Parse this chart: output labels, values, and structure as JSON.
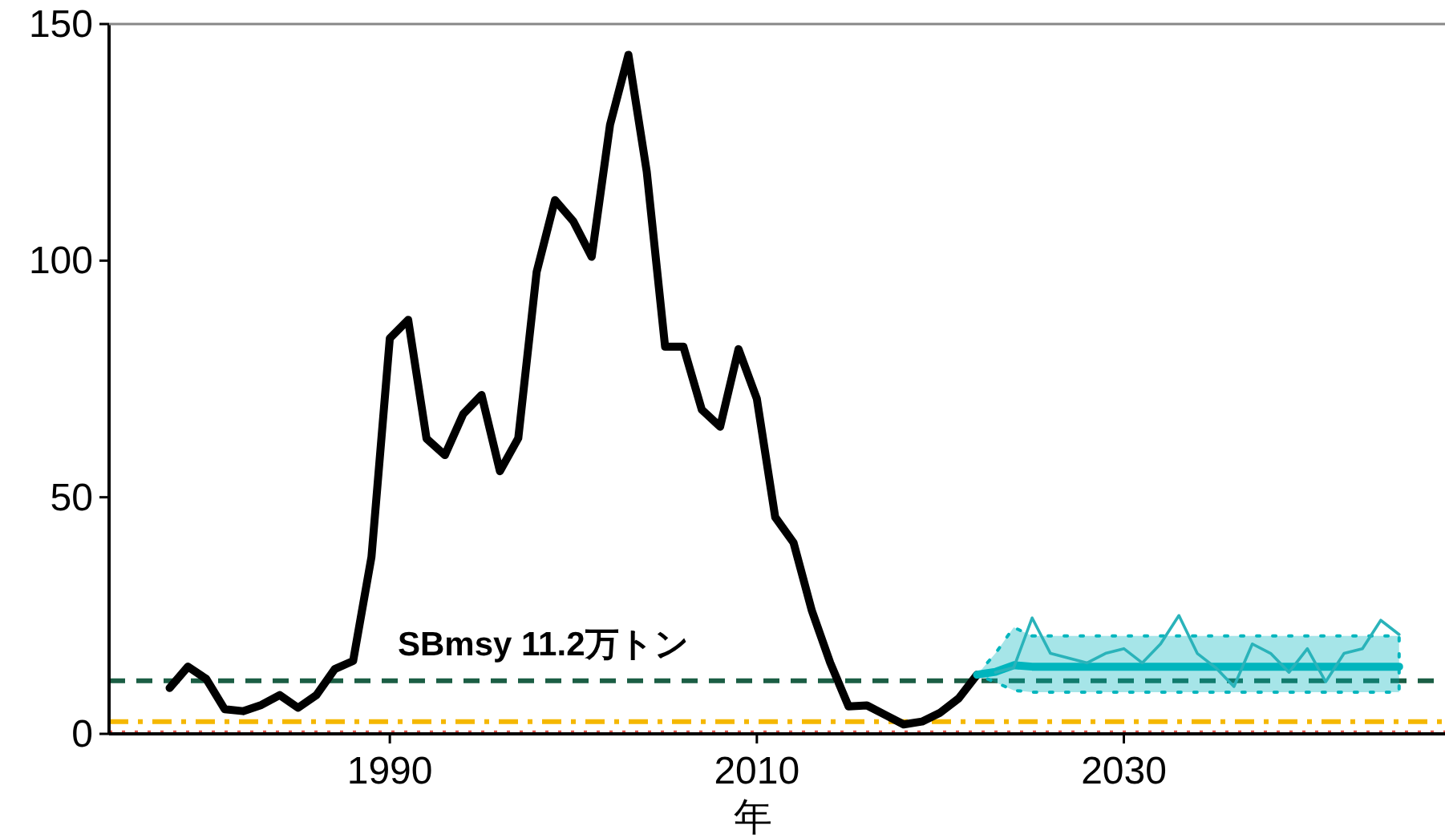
{
  "chart_data": {
    "type": "line",
    "xlabel": "年",
    "xlim": [
      1974.7,
      2047.5
    ],
    "ylim": [
      0,
      150
    ],
    "xticks": [
      1990,
      2010,
      2030
    ],
    "yticks": [
      0,
      50,
      100,
      150
    ],
    "grid": false,
    "marker": "none",
    "series": [
      {
        "color": "#000000",
        "x": [
          1978,
          1979,
          1980,
          1981,
          1982,
          1983,
          1984,
          1985,
          1986,
          1987,
          1988,
          1989,
          1990,
          1991,
          1992,
          1993,
          1994,
          1995,
          1996,
          1997,
          1998,
          1999,
          2000,
          2001,
          2002,
          2003,
          2004,
          2005,
          2006,
          2007,
          2008,
          2009,
          2010,
          2011,
          2012,
          2013,
          2014,
          2015,
          2016,
          2017,
          2018,
          2019,
          2020,
          2021,
          2022
        ],
        "values": [
          9.7,
          14.2,
          11.6,
          5.2,
          4.8,
          6.1,
          8.2,
          5.5,
          8.2,
          13.7,
          15.4,
          37.4,
          83.6,
          87.5,
          62.4,
          58.9,
          67.6,
          71.6,
          55.5,
          62.5,
          97.6,
          112.8,
          108.3,
          100.8,
          128.7,
          143.5,
          118.8,
          81.8,
          81.8,
          68.5,
          64.9,
          81.3,
          70.8,
          45.8,
          40.4,
          26,
          15,
          5.8,
          6,
          4,
          2,
          2.6,
          4.5,
          7.5,
          12.5
        ]
      },
      {
        "color": "#00b5bd",
        "x": [
          2022,
          2023,
          2024,
          2025,
          2026,
          2027,
          2028,
          2029,
          2030,
          2031,
          2032,
          2033,
          2034,
          2035,
          2036,
          2037,
          2038,
          2039,
          2040,
          2041,
          2042,
          2043,
          2044,
          2045
        ],
        "values": [
          12.5,
          13.1,
          14.5,
          14.2,
          14.2,
          14.2,
          14.2,
          14.2,
          14.2,
          14.2,
          14.2,
          14.2,
          14.2,
          14.2,
          14.2,
          14.2,
          14.2,
          14.2,
          14.2,
          14.2,
          14.2,
          14.2,
          14.2,
          14.2
        ],
        "lower": [
          12.5,
          10.9,
          9.2,
          8.8,
          8.8,
          8.8,
          8.8,
          8.8,
          8.8,
          8.8,
          8.8,
          8.8,
          8.8,
          8.8,
          8.8,
          8.8,
          8.8,
          8.8,
          8.8,
          8.8,
          8.8,
          8.8,
          8.8,
          8.8
        ],
        "upper": [
          12.5,
          17,
          22.5,
          20.7,
          20.7,
          20.7,
          20.7,
          20.7,
          20.7,
          20.7,
          20.7,
          20.7,
          20.7,
          20.7,
          20.7,
          20.7,
          20.7,
          20.7,
          20.7,
          20.7,
          20.7,
          20.7,
          20.7,
          20.7
        ]
      },
      {
        "color": "#2ab3ba",
        "x": [
          2023,
          2024,
          2025,
          2026,
          2027,
          2028,
          2029,
          2030,
          2031,
          2032,
          2033,
          2034,
          2035,
          2036,
          2037,
          2038,
          2039,
          2040,
          2041,
          2042,
          2043,
          2044,
          2045
        ],
        "values": [
          13,
          14,
          24.5,
          17,
          16,
          15,
          17,
          18,
          15,
          19,
          25,
          17,
          14,
          10,
          19,
          17,
          13,
          18,
          11,
          17,
          18,
          24,
          21
        ]
      }
    ],
    "ref_lines": [
      {
        "axis": "y",
        "value": 11.2,
        "label": "SBmsy 11.2万トン",
        "color": "#1b5e44",
        "line_style": "dashed"
      },
      {
        "axis": "y",
        "value": 2.6,
        "color": "#f5b800",
        "line_style": "dashdot"
      },
      {
        "axis": "y",
        "value": 0.2,
        "color": "#e0574f",
        "line_style": "dotted"
      }
    ]
  }
}
